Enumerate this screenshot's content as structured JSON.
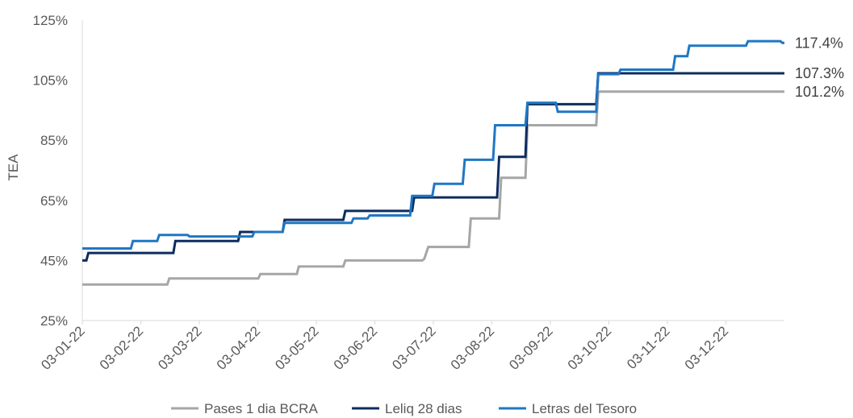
{
  "chart_data": {
    "type": "line",
    "ylabel": "TEA",
    "xlabel": "",
    "ylim": [
      25,
      125
    ],
    "yticks": [
      "25%",
      "45%",
      "65%",
      "85%",
      "105%",
      "125%"
    ],
    "ytick_values": [
      25,
      45,
      65,
      85,
      105,
      125
    ],
    "xticks": [
      "03-01-22",
      "03-02-22",
      "03-03-22",
      "03-04-22",
      "03-05-22",
      "03-06-22",
      "03-07-22",
      "03-08-22",
      "03-09-22",
      "03-10-22",
      "03-11-22",
      "03-12-22"
    ],
    "grid": false,
    "legend_position": "bottom",
    "series": [
      {
        "name": "Pases 1 dia BCRA",
        "color": "#a6a6a6",
        "end_label": "101.2%",
        "points": [
          [
            "2022-01-03",
            37.0
          ],
          [
            "2022-02-14",
            37.0
          ],
          [
            "2022-02-15",
            39.0
          ],
          [
            "2022-03-31",
            39.0
          ],
          [
            "2022-04-01",
            40.5
          ],
          [
            "2022-04-19",
            40.5
          ],
          [
            "2022-04-20",
            43.0
          ],
          [
            "2022-05-12",
            43.0
          ],
          [
            "2022-05-13",
            45.0
          ],
          [
            "2022-06-20",
            45.0
          ],
          [
            "2022-06-21",
            45.5
          ],
          [
            "2022-06-23",
            49.5
          ],
          [
            "2022-07-13",
            49.5
          ],
          [
            "2022-07-14",
            59.0
          ],
          [
            "2022-07-28",
            59.0
          ],
          [
            "2022-07-29",
            72.5
          ],
          [
            "2022-08-10",
            72.5
          ],
          [
            "2022-08-11",
            90.0
          ],
          [
            "2022-09-14",
            90.0
          ],
          [
            "2022-09-15",
            101.2
          ],
          [
            "2022-12-16",
            101.2
          ]
        ]
      },
      {
        "name": "Leliq 28 dias",
        "color": "#0d2c5e",
        "end_label": "107.3%",
        "points": [
          [
            "2022-01-03",
            45.0
          ],
          [
            "2022-01-05",
            45.0
          ],
          [
            "2022-01-06",
            47.5
          ],
          [
            "2022-02-17",
            47.5
          ],
          [
            "2022-02-18",
            51.5
          ],
          [
            "2022-03-21",
            51.5
          ],
          [
            "2022-03-22",
            54.5
          ],
          [
            "2022-04-12",
            54.5
          ],
          [
            "2022-04-13",
            58.5
          ],
          [
            "2022-05-12",
            58.5
          ],
          [
            "2022-05-13",
            61.5
          ],
          [
            "2022-06-15",
            61.5
          ],
          [
            "2022-06-16",
            66.0
          ],
          [
            "2022-07-27",
            66.0
          ],
          [
            "2022-07-28",
            79.5
          ],
          [
            "2022-08-10",
            79.5
          ],
          [
            "2022-08-11",
            97.0
          ],
          [
            "2022-09-14",
            97.0
          ],
          [
            "2022-09-15",
            107.3
          ],
          [
            "2022-12-16",
            107.3
          ]
        ]
      },
      {
        "name": "Letras del Tesoro",
        "color": "#1f77c4",
        "end_label": "117.4%",
        "points": [
          [
            "2022-01-03",
            49.0
          ],
          [
            "2022-01-27",
            49.0
          ],
          [
            "2022-01-28",
            51.5
          ],
          [
            "2022-02-09",
            51.5
          ],
          [
            "2022-02-10",
            53.5
          ],
          [
            "2022-02-24",
            53.5
          ],
          [
            "2022-02-25",
            53.0
          ],
          [
            "2022-03-28",
            53.0
          ],
          [
            "2022-03-29",
            54.5
          ],
          [
            "2022-04-12",
            54.5
          ],
          [
            "2022-04-13",
            57.5
          ],
          [
            "2022-05-16",
            57.5
          ],
          [
            "2022-05-17",
            59.0
          ],
          [
            "2022-05-24",
            59.0
          ],
          [
            "2022-05-25",
            60.0
          ],
          [
            "2022-06-14",
            60.0
          ],
          [
            "2022-06-15",
            66.5
          ],
          [
            "2022-06-25",
            66.5
          ],
          [
            "2022-06-26",
            70.5
          ],
          [
            "2022-07-10",
            70.5
          ],
          [
            "2022-07-11",
            78.5
          ],
          [
            "2022-07-25",
            78.5
          ],
          [
            "2022-07-26",
            90.0
          ],
          [
            "2022-08-10",
            90.0
          ],
          [
            "2022-08-11",
            97.5
          ],
          [
            "2022-08-25",
            97.5
          ],
          [
            "2022-08-26",
            94.5
          ],
          [
            "2022-09-14",
            94.5
          ],
          [
            "2022-09-15",
            107.0
          ],
          [
            "2022-09-25",
            107.0
          ],
          [
            "2022-09-26",
            108.5
          ],
          [
            "2022-10-22",
            108.5
          ],
          [
            "2022-10-23",
            113.0
          ],
          [
            "2022-10-29",
            113.0
          ],
          [
            "2022-10-30",
            116.5
          ],
          [
            "2022-11-27",
            116.5
          ],
          [
            "2022-11-28",
            118.0
          ],
          [
            "2022-12-14",
            118.0
          ],
          [
            "2022-12-15",
            117.4
          ],
          [
            "2022-12-16",
            117.4
          ]
        ]
      }
    ]
  }
}
